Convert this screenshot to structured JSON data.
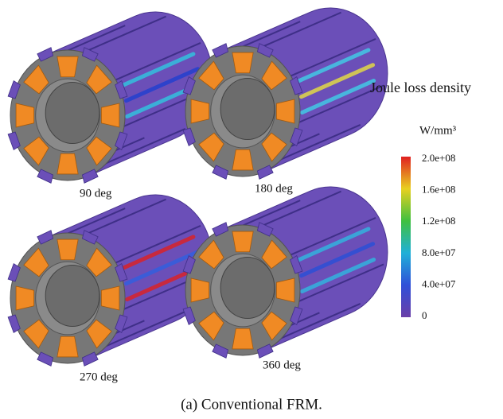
{
  "panels": [
    {
      "label": "90 deg"
    },
    {
      "label": "180 deg"
    },
    {
      "label": "270 deg"
    },
    {
      "label": "360 deg"
    }
  ],
  "legend": {
    "title": "Joule loss density",
    "unit": "W/mm³",
    "ticks": [
      "2.0e+08",
      "1.6e+08",
      "1.2e+08",
      "8.0e+07",
      "4.0e+07",
      "0"
    ]
  },
  "caption": "(a) Conventional FRM."
}
